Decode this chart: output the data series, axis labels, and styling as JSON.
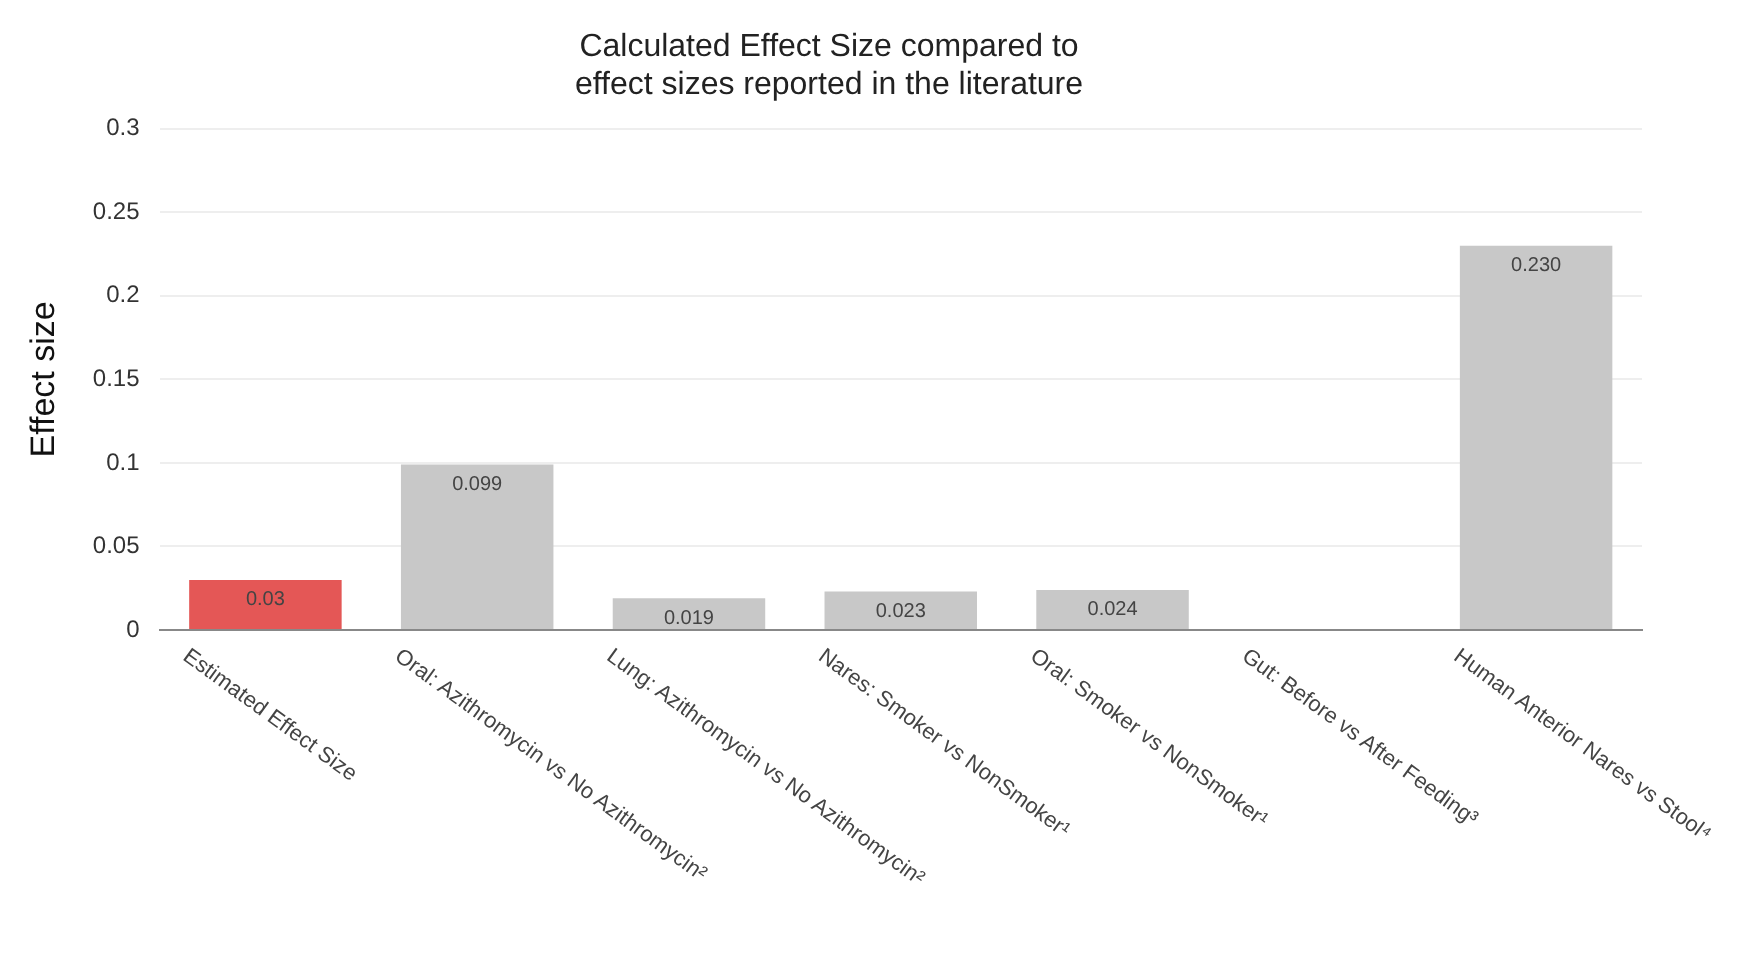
{
  "chart_data": {
    "type": "bar",
    "title": [
      "Calculated Effect Size compared to",
      "effect sizes reported in the literature"
    ],
    "ylabel": "Effect size",
    "categories": [
      "Estimated Effect Size",
      "Oral: Azithromycin vs No Azithromycin²",
      "Lung: Azithromycin vs No Azithromycin²",
      "Nares: Smoker vs NonSmoker¹",
      "Oral: Smoker vs NonSmoker¹",
      "Gut: Before vs After Feeding³",
      "Human Anterior Nares vs Stool⁴"
    ],
    "values": [
      0.03,
      0.099,
      0.019,
      0.023,
      0.024,
      null,
      0.23
    ],
    "value_labels": [
      "0.03",
      "0.099",
      "0.019",
      "0.023",
      "0.024",
      null,
      "0.230"
    ],
    "colors": [
      "#e45756",
      "#c8c8c8",
      "#c8c8c8",
      "#c8c8c8",
      "#c8c8c8",
      "#c8c8c8",
      "#c8c8c8"
    ],
    "ylim": [
      0,
      0.3
    ],
    "yticks": [
      0,
      0.05,
      0.1,
      0.15,
      0.2,
      0.25,
      0.3
    ],
    "grid": "y",
    "legend": false
  }
}
